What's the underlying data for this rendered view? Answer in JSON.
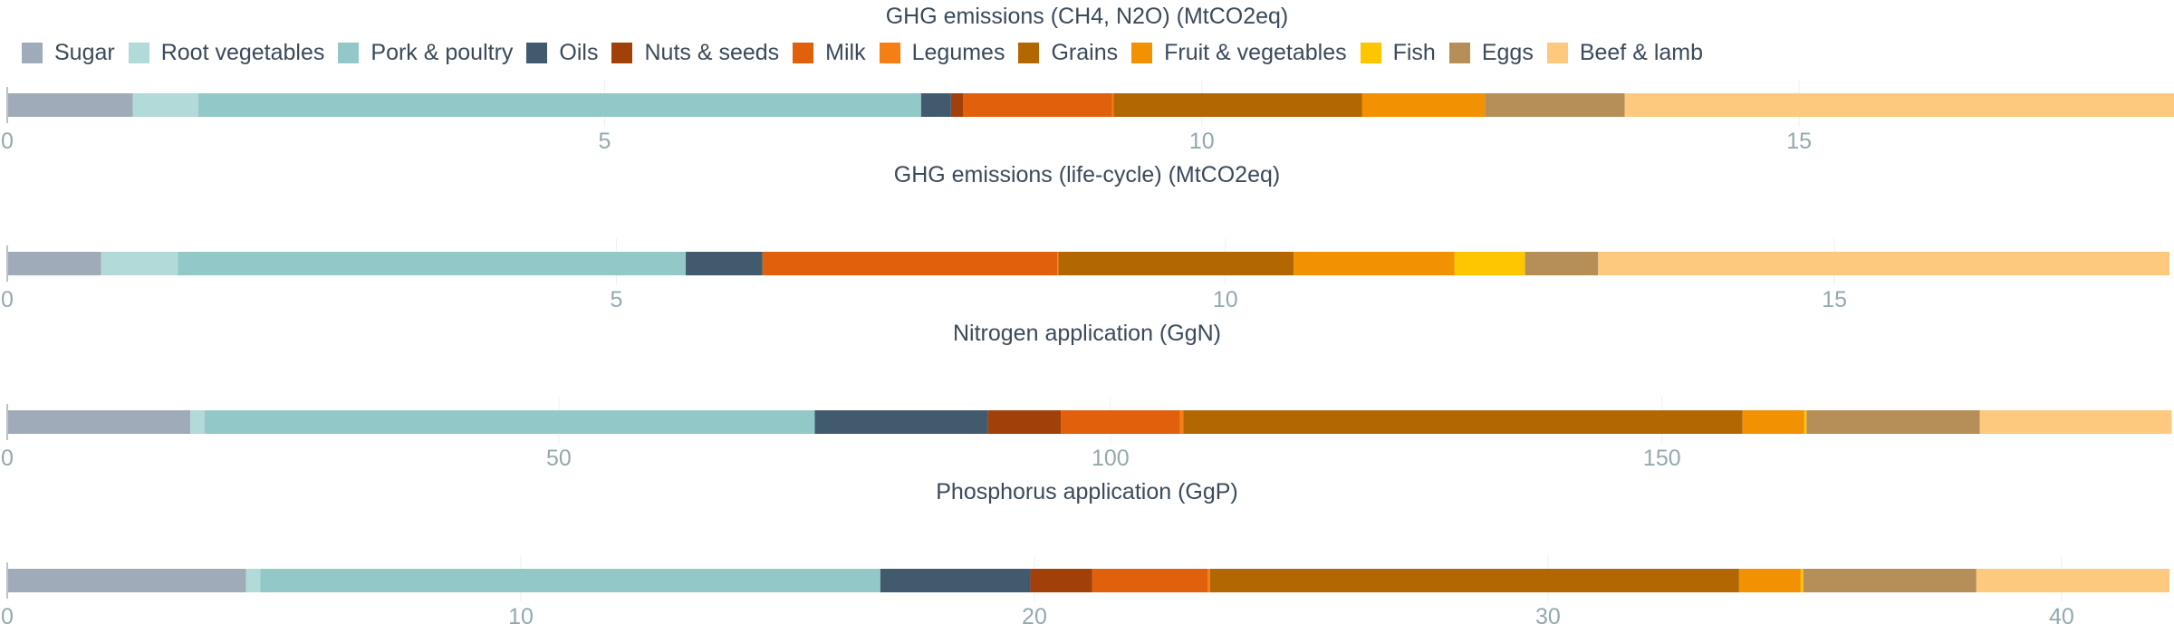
{
  "legend": [
    {
      "name": "Sugar",
      "color": "#a0abb9"
    },
    {
      "name": "Root vegetables",
      "color": "#b1dad8"
    },
    {
      "name": "Pork & poultry",
      "color": "#93c8c8"
    },
    {
      "name": "Oils",
      "color": "#425a6e"
    },
    {
      "name": "Nuts & seeds",
      "color": "#a2400a"
    },
    {
      "name": "Milk",
      "color": "#e0600c"
    },
    {
      "name": "Legumes",
      "color": "#f37f15"
    },
    {
      "name": "Grains",
      "color": "#b26702"
    },
    {
      "name": "Fruit & vegetables",
      "color": "#f29102"
    },
    {
      "name": "Fish",
      "color": "#fdc600"
    },
    {
      "name": "Eggs",
      "color": "#b68e58"
    },
    {
      "name": "Beef & lamb",
      "color": "#fcc97e"
    }
  ],
  "chart_data": [
    {
      "type": "bar",
      "orientation": "horizontal",
      "stacked": true,
      "title": "GHG emissions (CH4, N2O) (MtCO2eq)",
      "xlim": [
        0,
        18.1
      ],
      "xticks": [
        0,
        5,
        10,
        15
      ],
      "series": [
        {
          "name": "Sugar",
          "value": 1.05
        },
        {
          "name": "Root vegetables",
          "value": 0.55
        },
        {
          "name": "Pork & poultry",
          "value": 6.05
        },
        {
          "name": "Oils",
          "value": 0.25
        },
        {
          "name": "Nuts & seeds",
          "value": 0.1
        },
        {
          "name": "Milk",
          "value": 1.25
        },
        {
          "name": "Legumes",
          "value": 0.01
        },
        {
          "name": "Grains",
          "value": 2.08
        },
        {
          "name": "Fruit & vegetables",
          "value": 1.03
        },
        {
          "name": "Fish",
          "value": 0.0
        },
        {
          "name": "Eggs",
          "value": 1.17
        },
        {
          "name": "Beef & lamb",
          "value": 4.6
        }
      ]
    },
    {
      "type": "bar",
      "orientation": "horizontal",
      "stacked": true,
      "title": "GHG emissions (life-cycle) (MtCO2eq)",
      "xlim": [
        0,
        17.75
      ],
      "xticks": [
        0,
        5,
        10,
        15
      ],
      "series": [
        {
          "name": "Sugar",
          "value": 0.77
        },
        {
          "name": "Root vegetables",
          "value": 0.63
        },
        {
          "name": "Pork & poultry",
          "value": 4.17
        },
        {
          "name": "Oils",
          "value": 0.63
        },
        {
          "name": "Nuts & seeds",
          "value": 0.0
        },
        {
          "name": "Milk",
          "value": 2.42
        },
        {
          "name": "Legumes",
          "value": 0.01
        },
        {
          "name": "Grains",
          "value": 1.93
        },
        {
          "name": "Fruit & vegetables",
          "value": 1.32
        },
        {
          "name": "Fish",
          "value": 0.58
        },
        {
          "name": "Eggs",
          "value": 0.6
        },
        {
          "name": "Beef & lamb",
          "value": 4.69
        }
      ]
    },
    {
      "type": "bar",
      "orientation": "horizontal",
      "stacked": true,
      "title": "Nitrogen application (GgN)",
      "xlim": [
        0,
        196
      ],
      "xticks": [
        0,
        50,
        100,
        150
      ],
      "series": [
        {
          "name": "Sugar",
          "value": 16.6
        },
        {
          "name": "Root vegetables",
          "value": 1.3
        },
        {
          "name": "Pork & poultry",
          "value": 55.3
        },
        {
          "name": "Oils",
          "value": 15.7
        },
        {
          "name": "Nuts & seeds",
          "value": 6.6
        },
        {
          "name": "Milk",
          "value": 10.8
        },
        {
          "name": "Legumes",
          "value": 0.3
        },
        {
          "name": "Grains",
          "value": 50.7
        },
        {
          "name": "Fruit & vegetables",
          "value": 5.6
        },
        {
          "name": "Fish",
          "value": 0.2
        },
        {
          "name": "Eggs",
          "value": 15.7
        },
        {
          "name": "Beef & lamb",
          "value": 17.4
        }
      ]
    },
    {
      "type": "bar",
      "orientation": "horizontal",
      "stacked": true,
      "title": "Phosphorus application (GgP)",
      "xlim": [
        0,
        42.1
      ],
      "xticks": [
        0,
        10,
        20,
        30,
        40
      ],
      "series": [
        {
          "name": "Sugar",
          "value": 4.65
        },
        {
          "name": "Root vegetables",
          "value": 0.28
        },
        {
          "name": "Pork & poultry",
          "value": 12.07
        },
        {
          "name": "Oils",
          "value": 2.92
        },
        {
          "name": "Nuts & seeds",
          "value": 1.2
        },
        {
          "name": "Milk",
          "value": 2.25
        },
        {
          "name": "Legumes",
          "value": 0.05
        },
        {
          "name": "Grains",
          "value": 10.3
        },
        {
          "name": "Fruit & vegetables",
          "value": 1.2
        },
        {
          "name": "Fish",
          "value": 0.05
        },
        {
          "name": "Eggs",
          "value": 3.37
        },
        {
          "name": "Beef & lamb",
          "value": 3.76
        }
      ]
    }
  ]
}
